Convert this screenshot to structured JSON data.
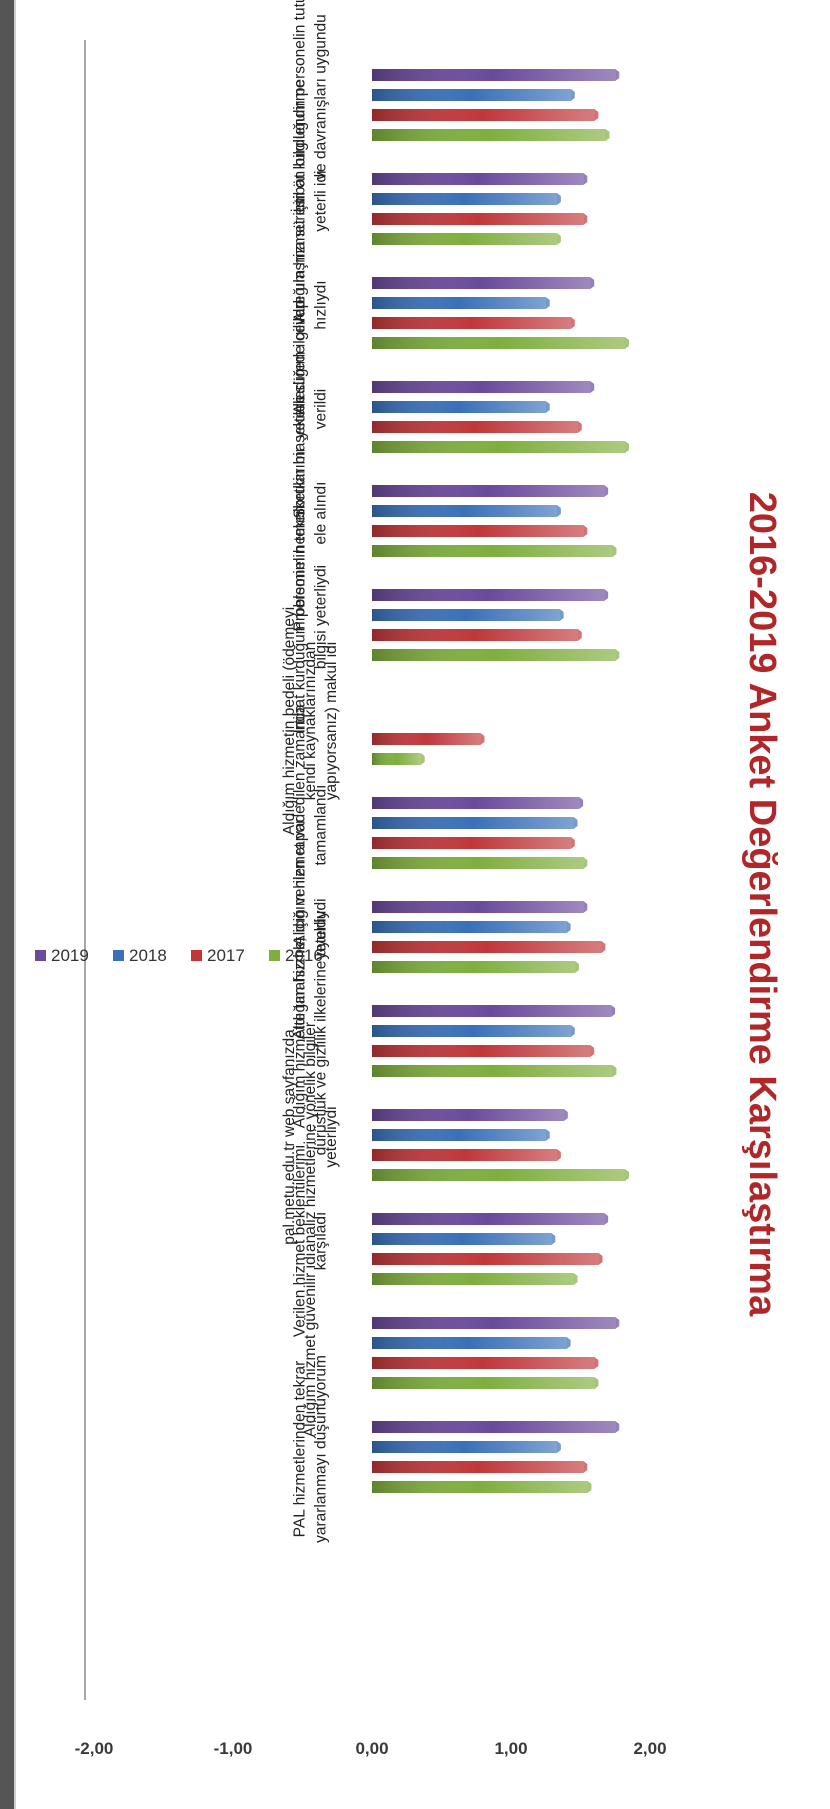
{
  "chart_data": {
    "type": "bar",
    "title": "2016-2019 Anket Değerlendirme Karşılaştırma",
    "xlabel": "",
    "ylabel": "",
    "ylim": [
      -2,
      2
    ],
    "yticks": [
      "-2,00",
      "-1,00",
      "0,00",
      "1,00",
      "2,00"
    ],
    "ytick_values": [
      -2,
      -1,
      0,
      1,
      2
    ],
    "grid": false,
    "legend_position": "bottom",
    "categories": [
      [
        "İrtibat kurduğum personelin tutum",
        "ve davranışları uygundu"
      ],
      [
        "Aldığım hizmet için ön bilgilendirme",
        "yeterli idi"
      ],
      [
        "Aradığım ilgililere ulaşma süresi",
        "hızlıydı"
      ],
      [
        "Sorularıma yeterli sürede cevap",
        "verildi"
      ],
      [
        "Problemim hemen etkin bir şekilde",
        "ele alındı"
      ],
      [
        "İrtibat kurduğum personelin teknik",
        "bilgisi yeterliydi"
      ],
      [
        "Aldığım hizmetin bedeli (ödemeyi",
        "kendi kaynaklarınızdan",
        "yapıyorsanız) makul idi"
      ],
      [
        "Aldığım hizmet vadedilen zamanda",
        "tamamlandı"
      ],
      [
        "Aldığım hizmet için verilen rapor",
        "yeterliydi"
      ],
      [
        "Aldığım hizmette tarafsızlık,",
        "dürüstlük ve gizlilik ilkelerine uyuldu"
      ],
      [
        "pal.metu.edu.tr web sayfanızda",
        "analiz hizmetlerine yönelik bilgiler",
        "yeterliydi"
      ],
      [
        "Verilen hizmet beklentilerimi",
        "karşıladı"
      ],
      [
        "Aldığım hizmet güvenilir idi"
      ],
      [
        "PAL hizmetlerinden tekrar",
        "yararlanmayı düşünüyorum"
      ]
    ],
    "series": [
      {
        "name": "2019",
        "color": "#6a4a9b",
        "values": [
          1.75,
          1.52,
          1.57,
          1.57,
          1.67,
          1.67,
          null,
          1.49,
          1.52,
          1.72,
          1.38,
          1.67,
          1.75,
          1.75
        ]
      },
      {
        "name": "2018",
        "color": "#3a70b8",
        "values": [
          1.43,
          1.33,
          1.25,
          1.25,
          1.33,
          1.35,
          null,
          1.45,
          1.4,
          1.43,
          1.25,
          1.29,
          1.4,
          1.33
        ]
      },
      {
        "name": "2017",
        "color": "#c0373a",
        "values": [
          1.6,
          1.52,
          1.43,
          1.48,
          1.52,
          1.48,
          0.78,
          1.43,
          1.65,
          1.57,
          1.33,
          1.63,
          1.6,
          1.52
        ]
      },
      {
        "name": "2016",
        "color": "#7fae3e",
        "values": [
          1.68,
          1.33,
          1.82,
          1.82,
          1.73,
          1.75,
          0.35,
          1.52,
          1.46,
          1.73,
          1.82,
          1.45,
          1.6,
          1.55
        ]
      }
    ]
  }
}
